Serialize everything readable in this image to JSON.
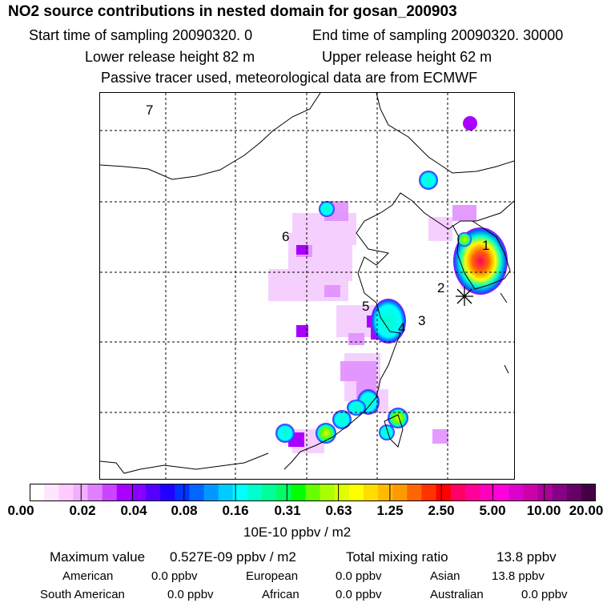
{
  "header": {
    "title": "NO2 source contributions in nested domain for gosan_200903",
    "start_time": "Start time of sampling 20090320.    0",
    "end_time": "End time of sampling 20090320. 30000",
    "lower_release": "Lower release height   82 m",
    "upper_release": "Upper release height   62 m",
    "tracer_note": "Passive tracer used, meteorological data are from ECMWF"
  },
  "map": {
    "region_labels": [
      "1",
      "2",
      "3",
      "4",
      "5",
      "6",
      "7"
    ],
    "receptor_marker": "asterisk"
  },
  "colorbar": {
    "ticks": [
      "0.00",
      "0.02",
      "0.04",
      "0.08",
      "0.16",
      "0.31",
      "0.63",
      "1.25",
      "2.50",
      "5.00",
      "10.00",
      "20.00"
    ],
    "unit": "10E-10 ppbv / m2",
    "colors": [
      "#ffffff",
      "#ffe6ff",
      "#ffccff",
      "#f0b0ff",
      "#e080ff",
      "#cc44ff",
      "#aa00ff",
      "#8800ff",
      "#5500ff",
      "#2200ff",
      "#0033ff",
      "#0066ff",
      "#0099ff",
      "#00ccff",
      "#00ffff",
      "#00ffcc",
      "#00ff99",
      "#00ff66",
      "#00ff00",
      "#66ff00",
      "#aaff00",
      "#ddff00",
      "#ffff00",
      "#ffdd00",
      "#ffbb00",
      "#ff9900",
      "#ff6600",
      "#ff3300",
      "#ff0000",
      "#ff0066",
      "#ff0099",
      "#ff00bb",
      "#ff00dd",
      "#dd00cc",
      "#cc00aa",
      "#aa0099",
      "#880088",
      "#660066",
      "#440044"
    ]
  },
  "summary": {
    "max_label": "Maximum value",
    "max_value": "0.527E-09 ppbv / m2",
    "total_label": "Total mixing ratio",
    "total_value": "13.8 ppbv"
  },
  "contributions": [
    {
      "region": "American",
      "value": "0.0 ppbv"
    },
    {
      "region": "European",
      "value": "0.0 ppbv"
    },
    {
      "region": "Asian",
      "value": "13.8 ppbv"
    },
    {
      "region": "South American",
      "value": "0.0 ppbv"
    },
    {
      "region": "African",
      "value": "0.0 ppbv"
    },
    {
      "region": "Australian",
      "value": "0.0 ppbv"
    }
  ]
}
